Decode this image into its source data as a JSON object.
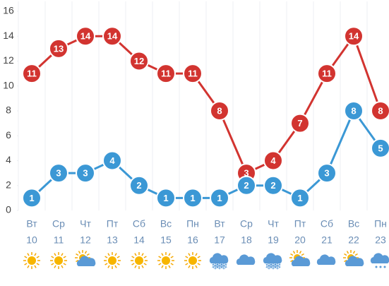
{
  "chart_data": {
    "type": "line",
    "categories": [
      "Вт",
      "Ср",
      "Чт",
      "Пт",
      "Сб",
      "Вс",
      "Пн",
      "Вт",
      "Ср",
      "Чт",
      "Пт",
      "Сб",
      "Вс",
      "Пн"
    ],
    "dates": [
      10,
      11,
      12,
      13,
      14,
      15,
      16,
      17,
      18,
      19,
      20,
      21,
      22,
      23
    ],
    "series": [
      {
        "color": "#d23430",
        "values": [
          11,
          13,
          14,
          14,
          12,
          11,
          11,
          8,
          3,
          4,
          7,
          11,
          14,
          8
        ]
      },
      {
        "color": "#3b98d5",
        "values": [
          1,
          3,
          3,
          4,
          2,
          1,
          1,
          1,
          2,
          2,
          1,
          3,
          8,
          5
        ]
      }
    ],
    "ylim": [
      0,
      16
    ],
    "yticks": [
      0,
      2,
      4,
      6,
      8,
      10,
      12,
      14,
      16
    ]
  }
}
